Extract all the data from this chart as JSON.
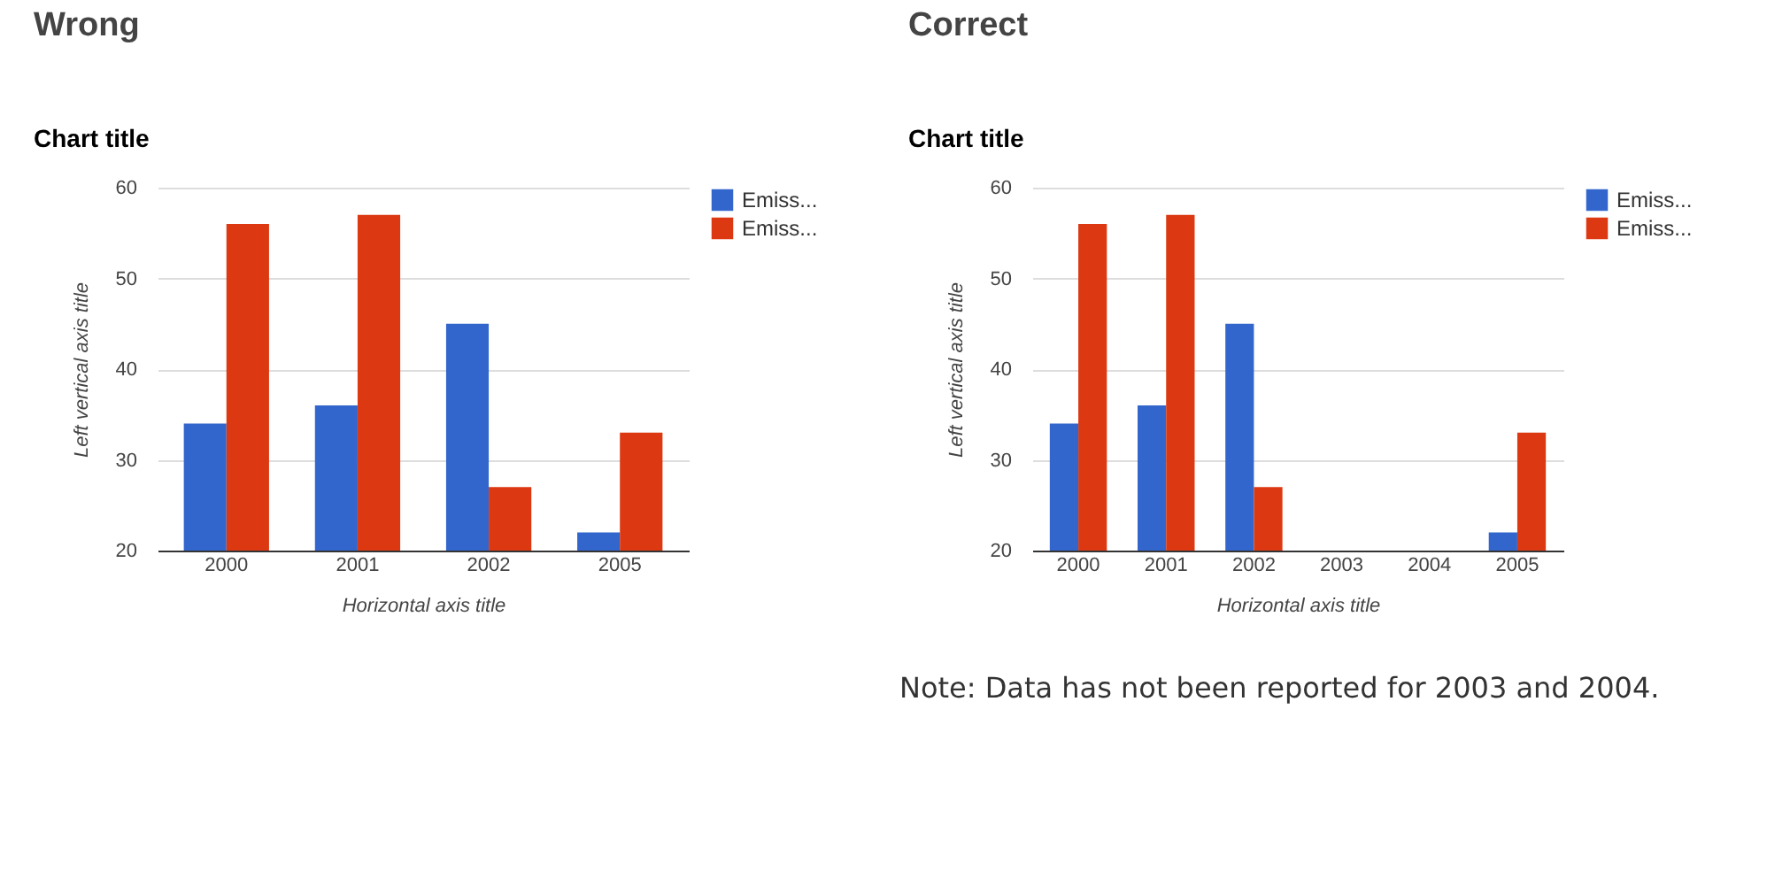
{
  "chart_data": [
    {
      "type": "bar",
      "title": "Wrong",
      "subtitle": "Chart title",
      "xlabel": "Horizontal axis title",
      "ylabel": "Left vertical axis title",
      "categories": [
        "2000",
        "2001",
        "2002",
        "2005"
      ],
      "series": [
        {
          "name": "Emiss...",
          "color": "#3366cc",
          "values": [
            34,
            36,
            45,
            22
          ]
        },
        {
          "name": "Emiss...",
          "color": "#dc3912",
          "values": [
            56,
            57,
            27,
            33
          ]
        }
      ],
      "ylim": [
        20,
        60
      ],
      "yticks": [
        20,
        30,
        40,
        50,
        60
      ],
      "grid": "y",
      "legend": "top right"
    },
    {
      "type": "bar",
      "title": "Correct",
      "subtitle": "Chart title",
      "xlabel": "Horizontal axis title",
      "ylabel": "Left vertical axis title",
      "categories": [
        "2000",
        "2001",
        "2002",
        "2003",
        "2004",
        "2005"
      ],
      "series": [
        {
          "name": "Emiss...",
          "color": "#3366cc",
          "values": [
            34,
            36,
            45,
            null,
            null,
            22
          ]
        },
        {
          "name": "Emiss...",
          "color": "#dc3912",
          "values": [
            56,
            57,
            27,
            null,
            null,
            33
          ]
        }
      ],
      "ylim": [
        20,
        60
      ],
      "yticks": [
        20,
        30,
        40,
        50,
        60
      ],
      "grid": "y",
      "legend": "top right",
      "annotations": [
        "Note: Data has not been reported for 2003 and 2004."
      ]
    }
  ]
}
